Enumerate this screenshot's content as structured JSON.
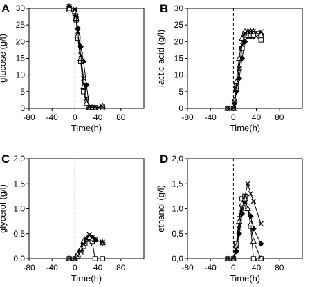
{
  "chart_data": [
    {
      "type": "scatter",
      "panel": "A",
      "xlabel": "Time(h)",
      "ylabel": "glucose (g/l)",
      "xlim": [
        -80,
        120
      ],
      "ylim": [
        0,
        30
      ],
      "xticks": [
        -80,
        -40,
        0,
        40,
        80
      ],
      "yticks": [
        0,
        5,
        10,
        15,
        20,
        25,
        30
      ],
      "ytick_labels": [
        "0",
        "5",
        "10",
        "15",
        "20",
        "25",
        "30"
      ],
      "vline": 0,
      "series": [
        {
          "marker": "diamond-filled",
          "x": [
            -10,
            0,
            2,
            5,
            10,
            15,
            20,
            25,
            30,
            35,
            48
          ],
          "y": [
            30.5,
            29.5,
            27.5,
            24,
            18.5,
            14,
            7,
            0.3,
            0.3,
            0.3,
            0.3
          ]
        },
        {
          "marker": "square-open",
          "x": [
            -10,
            0,
            2,
            5,
            10,
            15,
            20,
            25,
            30,
            35,
            48
          ],
          "y": [
            29.5,
            28.5,
            26.5,
            21,
            14,
            5,
            1.5,
            0.2,
            0.2,
            0.2,
            0.2
          ]
        },
        {
          "marker": "triangle-open",
          "x": [
            -10,
            0,
            2,
            5,
            10,
            15,
            20,
            25,
            30,
            35,
            48
          ],
          "y": [
            30,
            29,
            27,
            22,
            15,
            6.5,
            1.5,
            0.2,
            0.2,
            0.2,
            0.6
          ]
        },
        {
          "marker": "x",
          "x": [
            -10,
            0,
            2,
            5,
            10,
            15,
            20,
            25,
            30,
            35,
            48
          ],
          "y": [
            30.5,
            29.8,
            27.5,
            23,
            16,
            9,
            3,
            0.3,
            0.3,
            0.3,
            0.5
          ]
        }
      ]
    },
    {
      "type": "scatter",
      "panel": "B",
      "xlabel": "Time(h)",
      "ylabel": "lactic acid (g/l)",
      "xlim": [
        -80,
        120
      ],
      "ylim": [
        0,
        30
      ],
      "xticks": [
        -80,
        -40,
        0,
        40,
        80
      ],
      "yticks": [
        0,
        5,
        10,
        15,
        20,
        25,
        30
      ],
      "ytick_labels": [
        "0",
        "5",
        "10",
        "15",
        "20",
        "25",
        "30"
      ],
      "vline": 0,
      "series": [
        {
          "marker": "diamond-filled",
          "x": [
            -10,
            0,
            2,
            5,
            10,
            15,
            20,
            25,
            30,
            35,
            48
          ],
          "y": [
            0,
            0,
            1.5,
            5,
            9,
            15,
            20,
            21.5,
            21.5,
            21.5,
            22
          ]
        },
        {
          "marker": "square-open",
          "x": [
            -10,
            0,
            2,
            5,
            10,
            15,
            20,
            25,
            30,
            35,
            48
          ],
          "y": [
            0,
            0,
            2,
            6,
            12,
            18,
            22,
            22,
            22,
            22,
            20.5
          ]
        },
        {
          "marker": "triangle-open",
          "x": [
            -10,
            0,
            2,
            5,
            10,
            15,
            20,
            25,
            30,
            35,
            48
          ],
          "y": [
            0,
            0,
            2.5,
            8,
            15,
            21,
            23,
            23,
            23,
            23,
            22
          ]
        },
        {
          "marker": "x",
          "x": [
            -10,
            0,
            2,
            5,
            10,
            15,
            20,
            25,
            30,
            35,
            48
          ],
          "y": [
            0,
            0,
            2,
            6.5,
            12,
            19,
            22.5,
            23,
            23,
            23,
            23
          ]
        }
      ]
    },
    {
      "type": "scatter",
      "panel": "C",
      "xlabel": "Time(h)",
      "ylabel": "glycerol (g/l)",
      "xlim": [
        -80,
        120
      ],
      "ylim": [
        0,
        2
      ],
      "xticks": [
        -80,
        -40,
        0,
        40,
        80
      ],
      "yticks": [
        0,
        0.5,
        1,
        1.5,
        2
      ],
      "ytick_labels": [
        "0,0",
        "0,5",
        "1,0",
        "1,5",
        "2,0"
      ],
      "vline": 0,
      "series": [
        {
          "marker": "diamond-filled",
          "x": [
            -10,
            0,
            5,
            10,
            15,
            20,
            25,
            30,
            35,
            48
          ],
          "y": [
            0,
            0,
            0.05,
            0.15,
            0.3,
            0.4,
            0.45,
            0.42,
            0.38,
            0.32
          ]
        },
        {
          "marker": "square-open",
          "x": [
            -10,
            0,
            5,
            10,
            15,
            20,
            25,
            30,
            35,
            48
          ],
          "y": [
            0,
            0,
            0.05,
            0.12,
            0.25,
            0.3,
            0.3,
            0.35,
            0.0,
            0.0
          ]
        },
        {
          "marker": "triangle-open",
          "x": [
            -10,
            0,
            5,
            10,
            15,
            20,
            25,
            30,
            35,
            48
          ],
          "y": [
            0,
            0,
            0.08,
            0.2,
            0.35,
            0.4,
            0.42,
            0.4,
            0.38,
            0.32
          ]
        },
        {
          "marker": "x",
          "x": [
            -10,
            0,
            5,
            10,
            15,
            20,
            25,
            30,
            35,
            48
          ],
          "y": [
            0,
            0,
            0.06,
            0.15,
            0.3,
            0.4,
            0.48,
            0.42,
            0.38,
            0.33
          ]
        }
      ]
    },
    {
      "type": "scatter",
      "panel": "D",
      "xlabel": "Time(h)",
      "ylabel": "ethanol (g/l)",
      "xlim": [
        -80,
        120
      ],
      "ylim": [
        0,
        2
      ],
      "xticks": [
        -80,
        -40,
        0,
        40,
        80
      ],
      "yticks": [
        0,
        0.5,
        1,
        1.5,
        2
      ],
      "ytick_labels": [
        "0,0",
        "0,5",
        "1,0",
        "1,5",
        "2,0"
      ],
      "vline": 0,
      "series": [
        {
          "marker": "diamond-filled",
          "x": [
            -10,
            0,
            5,
            10,
            15,
            20,
            25,
            30,
            35,
            48
          ],
          "y": [
            0,
            0,
            0.15,
            0.5,
            0.9,
            1.15,
            1.0,
            0.85,
            0.6,
            0.3
          ]
        },
        {
          "marker": "square-open",
          "x": [
            -10,
            0,
            5,
            10,
            15,
            20,
            25,
            30,
            35,
            48
          ],
          "y": [
            0,
            0,
            0.3,
            0.8,
            1.2,
            1.25,
            1.05,
            0.65,
            0.0,
            0.0
          ]
        },
        {
          "marker": "triangle-open",
          "x": [
            -10,
            0,
            5,
            10,
            15,
            20,
            25,
            30,
            35,
            48
          ],
          "y": [
            0,
            0,
            0.25,
            0.75,
            1.1,
            1.2,
            1.0,
            0.7,
            0.35,
            0.0
          ]
        },
        {
          "marker": "x",
          "x": [
            -10,
            0,
            5,
            10,
            15,
            20,
            25,
            30,
            35,
            48
          ],
          "y": [
            0,
            0,
            0.2,
            0.6,
            1.0,
            1.25,
            1.5,
            1.3,
            1.15,
            0.7
          ]
        }
      ]
    }
  ]
}
